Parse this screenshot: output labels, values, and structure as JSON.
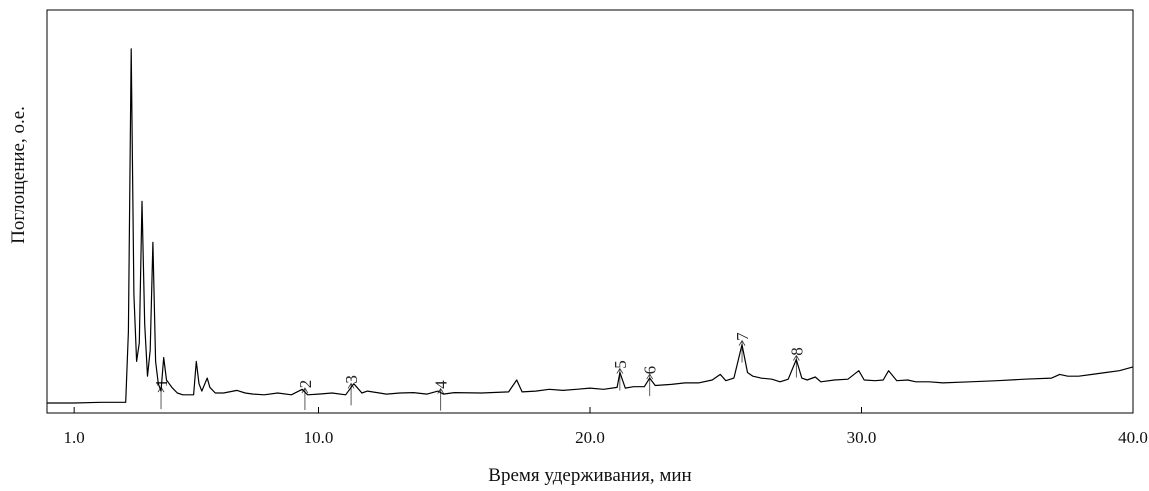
{
  "chart_data": {
    "type": "line",
    "xlabel": "Время удерживания, мин",
    "ylabel": "Поглощение, о.е.",
    "xlim": [
      0,
      40
    ],
    "ylim": [
      0,
      100
    ],
    "grid": false,
    "x_ticks": [
      {
        "value": 1,
        "label": "1.0"
      },
      {
        "value": 10,
        "label": "10.0"
      },
      {
        "value": 20,
        "label": "20.0"
      },
      {
        "value": 30,
        "label": "30.0"
      },
      {
        "value": 40,
        "label": "40.0"
      }
    ],
    "peak_labels": [
      {
        "x": 4.2,
        "label": "1"
      },
      {
        "x": 9.5,
        "label": "2"
      },
      {
        "x": 11.2,
        "label": "3"
      },
      {
        "x": 14.5,
        "label": "4"
      },
      {
        "x": 21.1,
        "label": "5"
      },
      {
        "x": 22.2,
        "label": "6"
      },
      {
        "x": 25.6,
        "label": "7"
      },
      {
        "x": 27.6,
        "label": "8"
      }
    ],
    "series": [
      {
        "x": [
          0.0,
          1.0,
          2.0,
          2.9,
          3.0,
          3.1,
          3.2,
          3.3,
          3.4,
          3.5,
          3.6,
          3.7,
          3.8,
          3.9,
          4.0,
          4.1,
          4.2,
          4.3,
          4.4,
          4.5,
          4.6,
          4.8,
          5.0,
          5.4,
          5.5,
          5.6,
          5.7,
          5.9,
          6.0,
          6.2,
          6.5,
          7.0,
          7.3,
          7.6,
          8.0,
          8.5,
          9.0,
          9.4,
          9.6,
          10.0,
          10.5,
          11.0,
          11.3,
          11.6,
          11.8,
          12.5,
          13.0,
          13.5,
          14.0,
          14.4,
          14.6,
          15.0,
          16.0,
          17.0,
          17.3,
          17.5,
          18.0,
          18.5,
          19.0,
          19.5,
          20.0,
          20.5,
          21.0,
          21.1,
          21.3,
          21.6,
          22.0,
          22.2,
          22.4,
          23.0,
          23.5,
          24.0,
          24.5,
          24.8,
          25.0,
          25.3,
          25.6,
          25.8,
          26.0,
          26.3,
          26.7,
          27.0,
          27.3,
          27.6,
          27.8,
          28.0,
          28.3,
          28.5,
          29.0,
          29.5,
          29.9,
          30.1,
          30.5,
          30.8,
          31.0,
          31.3,
          31.7,
          32.0,
          32.5,
          33.0,
          34.0,
          35.0,
          36.0,
          37.0,
          37.3,
          37.6,
          38.0,
          38.5,
          39.0,
          39.5,
          40.0
        ],
        "y": [
          0.8,
          0.8,
          1.0,
          1.0,
          20.0,
          96.0,
          30.0,
          12.0,
          17.0,
          55.0,
          22.0,
          8.0,
          15.0,
          44.0,
          12.0,
          6.0,
          4.0,
          13.0,
          7.0,
          6.0,
          5.0,
          3.5,
          3.0,
          3.0,
          12.0,
          6.0,
          4.0,
          7.5,
          5.0,
          3.5,
          3.5,
          4.2,
          3.5,
          3.2,
          3.0,
          3.5,
          3.0,
          4.5,
          3.0,
          3.2,
          3.5,
          3.0,
          6.0,
          3.5,
          4.0,
          3.2,
          3.5,
          3.6,
          3.2,
          4.0,
          3.2,
          3.6,
          3.5,
          3.8,
          7.0,
          3.8,
          4.0,
          4.5,
          4.2,
          4.5,
          4.8,
          4.5,
          5.0,
          9.0,
          4.8,
          5.2,
          5.2,
          7.5,
          5.5,
          5.8,
          6.2,
          6.2,
          7.0,
          8.5,
          6.8,
          7.5,
          16.5,
          9.0,
          8.0,
          7.5,
          7.2,
          6.5,
          7.2,
          12.5,
          7.5,
          7.0,
          7.8,
          6.5,
          7.0,
          7.2,
          9.5,
          7.0,
          6.8,
          7.0,
          9.5,
          6.8,
          7.0,
          6.5,
          6.5,
          6.2,
          6.5,
          6.8,
          7.2,
          7.5,
          8.5,
          8.0,
          8.0,
          8.5,
          9.0,
          9.5,
          10.5
        ]
      }
    ]
  }
}
